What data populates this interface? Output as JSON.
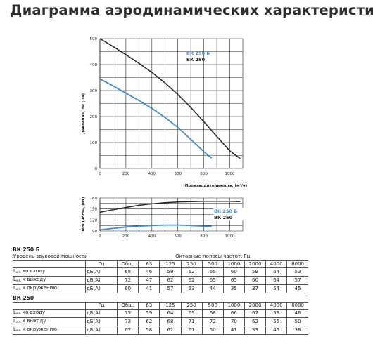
{
  "title": "Диаграмма аэродинамических характеристик",
  "chart_data": [
    {
      "type": "line",
      "ylabel": "Давление, ∆P (Па)",
      "xlabel": "Производительность, (м³/ч)",
      "xlim": [
        0,
        1100
      ],
      "ylim": [
        0,
        500
      ],
      "x_ticks": [
        "0",
        "200",
        "400",
        "600",
        "800",
        "1000"
      ],
      "y_ticks": [
        "0",
        "100",
        "200",
        "300",
        "400",
        "500"
      ],
      "grid": true,
      "legend_position": "top-right",
      "series": [
        {
          "name": "ВК 250 Б",
          "color": "#3a8dd8",
          "points": [
            [
              0,
              345
            ],
            [
              100,
              318
            ],
            [
              200,
              290
            ],
            [
              300,
              262
            ],
            [
              400,
              232
            ],
            [
              500,
              197
            ],
            [
              600,
              158
            ],
            [
              700,
              112
            ],
            [
              800,
              65
            ],
            [
              860,
              40
            ]
          ]
        },
        {
          "name": "ВК 250",
          "color": "#222222",
          "points": [
            [
              0,
              500
            ],
            [
              100,
              470
            ],
            [
              200,
              438
            ],
            [
              300,
              405
            ],
            [
              400,
              370
            ],
            [
              500,
              330
            ],
            [
              600,
              285
            ],
            [
              700,
              235
            ],
            [
              800,
              180
            ],
            [
              900,
              123
            ],
            [
              1000,
              68
            ],
            [
              1080,
              38
            ]
          ]
        }
      ]
    },
    {
      "type": "line",
      "ylabel": "Мощность, (Вт)",
      "xlim": [
        0,
        1100
      ],
      "ylim": [
        90,
        180
      ],
      "x_ticks": [
        "0",
        "200",
        "400",
        "600",
        "800",
        "1000"
      ],
      "y_ticks": [
        "90",
        "120",
        "150",
        "180"
      ],
      "grid": true,
      "legend_position": "right",
      "series": [
        {
          "name": "ВК 250 Б",
          "color": "#3a8dd8",
          "points": [
            [
              0,
              93
            ],
            [
              100,
              97
            ],
            [
              200,
              101
            ],
            [
              300,
              103
            ],
            [
              400,
              105
            ],
            [
              500,
              106
            ],
            [
              600,
              106
            ],
            [
              700,
              105
            ],
            [
              800,
              103
            ],
            [
              860,
              102
            ]
          ]
        },
        {
          "name": "ВК 250",
          "color": "#222222",
          "points": [
            [
              0,
              141
            ],
            [
              100,
              148
            ],
            [
              200,
              154
            ],
            [
              300,
              160
            ],
            [
              400,
              164
            ],
            [
              500,
              167
            ],
            [
              600,
              169
            ],
            [
              700,
              170
            ],
            [
              800,
              171
            ],
            [
              900,
              171
            ],
            [
              1000,
              171
            ],
            [
              1080,
              170
            ]
          ]
        }
      ]
    }
  ],
  "tables": [
    {
      "title": "ВК 250 Б",
      "header1": [
        "Уровень звуковой мощности",
        "Октавные полосы частот, Гц"
      ],
      "header2": [
        "",
        "Гц",
        "Общ.",
        "63",
        "125",
        "250",
        "500",
        "1000",
        "2000",
        "4000",
        "8000"
      ],
      "rows": [
        {
          "lw": "L",
          "sub": "wA",
          "label": " ко входу",
          "unit": "дБ(А)",
          "values": [
            "68",
            "46",
            "59",
            "62",
            "65",
            "60",
            "59",
            "64",
            "53"
          ]
        },
        {
          "lw": "L",
          "sub": "wA",
          "label": " к выходу",
          "unit": "дБ(А)",
          "values": [
            "72",
            "47",
            "62",
            "62",
            "65",
            "65",
            "60",
            "64",
            "57"
          ]
        },
        {
          "lw": "L",
          "sub": "wA",
          "label": " к окружению",
          "unit": "дБ(А)",
          "values": [
            "60",
            "41",
            "57",
            "53",
            "44",
            "35",
            "37",
            "54",
            "45"
          ]
        }
      ]
    },
    {
      "title": "ВК 250",
      "header2": [
        "",
        "Гц",
        "Общ.",
        "63",
        "125",
        "250",
        "500",
        "1000",
        "2000",
        "4000",
        "8000"
      ],
      "rows": [
        {
          "lw": "L",
          "sub": "wA",
          "label": " ко входу",
          "unit": "дБ(А)",
          "values": [
            "75",
            "59",
            "64",
            "69",
            "68",
            "66",
            "62",
            "53",
            "46"
          ]
        },
        {
          "lw": "L",
          "sub": "wA",
          "label": " к выходу",
          "unit": "дБ(А)",
          "values": [
            "73",
            "62",
            "68",
            "71",
            "72",
            "70",
            "62",
            "55",
            "50"
          ]
        },
        {
          "lw": "L",
          "sub": "wA",
          "label": " к окружению",
          "unit": "дБ(А)",
          "values": [
            "67",
            "58",
            "62",
            "61",
            "50",
            "41",
            "33",
            "45",
            "38"
          ]
        }
      ]
    }
  ]
}
